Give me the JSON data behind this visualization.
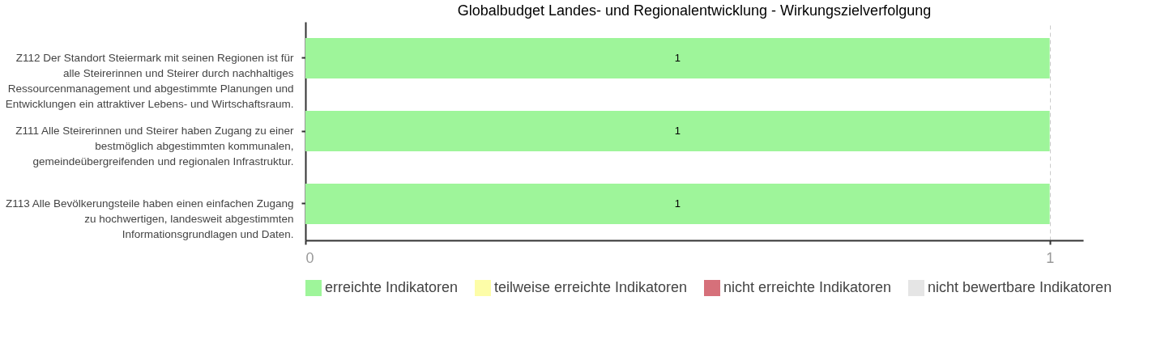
{
  "chart_data": {
    "type": "bar",
    "orientation": "horizontal",
    "stacked": true,
    "title": "Globalbudget Landes- und Regionalentwicklung - Wirkungszielverfolgung",
    "categories": [
      "Z112 Der Standort Steiermark mit seinen Regionen ist für alle Steirerinnen und Steirer durch nachhaltiges Ressourcenmanagement und abgestimmte Planungen und Entwicklungen ein attraktiver Lebens- und Wirtschaftsraum.",
      "Z111 Alle Steirerinnen und Steirer haben Zugang zu einer bestmöglich abgestimmten kommunalen, gemeindeübergreifenden und regionalen Infrastruktur.",
      "Z113 Alle Bevölkerungsteile haben einen einfachen Zugang zu hochwertigen, landesweit abgestimmten Informationsgrundlagen und Daten."
    ],
    "series": [
      {
        "name": "erreichte Indikatoren",
        "color": "#9ef59a",
        "values": [
          1,
          1,
          1
        ],
        "value_labels": [
          "1",
          "1",
          "1"
        ]
      },
      {
        "name": "teilweise erreichte Indikatoren",
        "color": "#fdfda8",
        "values": [
          0,
          0,
          0
        ]
      },
      {
        "name": "nicht erreichte Indikatoren",
        "color": "#d6707a",
        "values": [
          0,
          0,
          0
        ]
      },
      {
        "name": "nicht bewertbare Indikatoren",
        "color": "#e5e5e5",
        "values": [
          0,
          0,
          0
        ]
      }
    ],
    "xlim": [
      0,
      1.045
    ],
    "xticks": [
      0,
      1
    ],
    "grid": "x",
    "legend": "bottom"
  }
}
